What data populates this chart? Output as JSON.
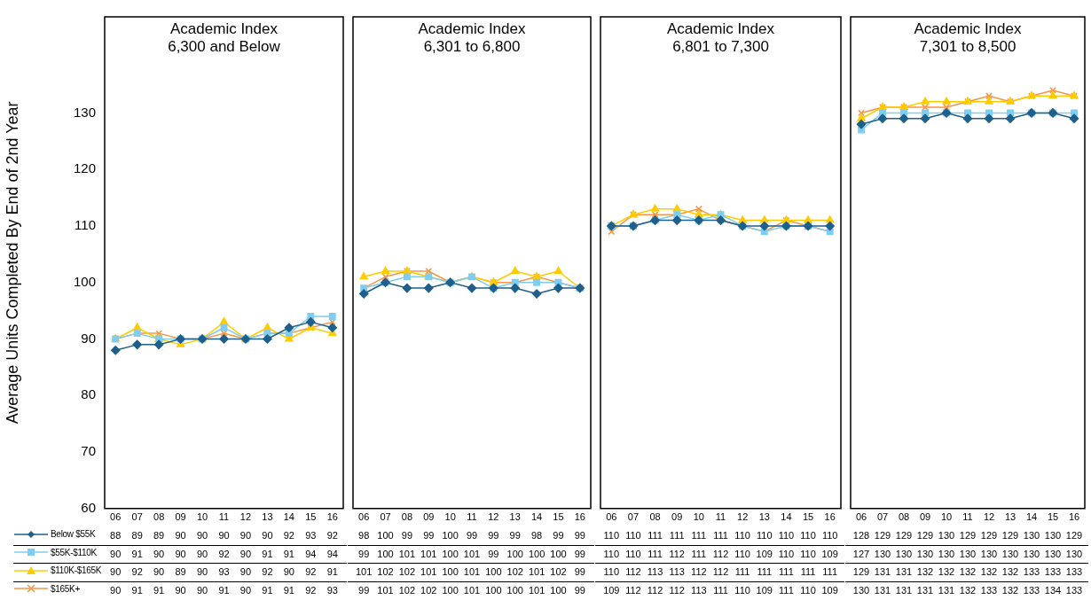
{
  "chart_data": [
    {
      "type": "line",
      "title": "Academic Index\n6,300 and Below",
      "ylabel": "Average Units Completed By End of 2nd Year",
      "categories": [
        "06",
        "07",
        "08",
        "09",
        "10",
        "11",
        "12",
        "13",
        "14",
        "15",
        "16"
      ],
      "ylim": [
        60,
        147
      ],
      "yticks": [
        60,
        70,
        80,
        90,
        100,
        110,
        120,
        130
      ],
      "legend": "bottom left",
      "data_labels": true,
      "series": [
        {
          "name": "Below $55K",
          "color": "#1f5f8b",
          "marker": "diamond",
          "values": [
            88,
            89,
            89,
            90,
            90,
            90,
            90,
            90,
            92,
            93,
            92
          ]
        },
        {
          "name": "$55K-$110K",
          "color": "#7fcdf0",
          "marker": "square",
          "values": [
            90,
            91,
            90,
            90,
            90,
            92,
            90,
            91,
            91,
            94,
            94
          ]
        },
        {
          "name": "$110K-$165K",
          "color": "#ffcc00",
          "marker": "triangle",
          "values": [
            90,
            92,
            90,
            89,
            90,
            93,
            90,
            92,
            90,
            92,
            91
          ]
        },
        {
          "name": "$165K+",
          "color": "#f79646",
          "marker": "cross",
          "values": [
            90,
            91,
            91,
            90,
            90,
            91,
            90,
            91,
            91,
            92,
            93
          ]
        }
      ]
    },
    {
      "type": "line",
      "title": "Academic Index\n6,301 to 6,800",
      "categories": [
        "06",
        "07",
        "08",
        "09",
        "10",
        "11",
        "12",
        "13",
        "14",
        "15",
        "16"
      ],
      "ylim": [
        60,
        147
      ],
      "tick_labels": "x",
      "data_labels": true,
      "series": [
        {
          "color": "#1f5f8b",
          "marker": "diamond",
          "values": [
            98,
            100,
            99,
            99,
            100,
            99,
            99,
            99,
            98,
            99,
            99
          ]
        },
        {
          "color": "#7fcdf0",
          "marker": "square",
          "values": [
            99,
            100,
            101,
            101,
            100,
            101,
            99,
            100,
            100,
            100,
            99
          ]
        },
        {
          "color": "#ffcc00",
          "marker": "triangle",
          "values": [
            101,
            102,
            102,
            101,
            100,
            101,
            100,
            102,
            101,
            102,
            99
          ]
        },
        {
          "color": "#f79646",
          "marker": "cross",
          "values": [
            99,
            101,
            102,
            102,
            100,
            101,
            100,
            100,
            101,
            100,
            99
          ]
        }
      ]
    },
    {
      "type": "line",
      "title": "Academic Index\n6,801 to 7,300",
      "categories": [
        "06",
        "07",
        "08",
        "09",
        "10",
        "11",
        "12",
        "13",
        "14",
        "15",
        "16"
      ],
      "ylim": [
        60,
        147
      ],
      "tick_labels": "x",
      "data_labels": true,
      "series": [
        {
          "color": "#1f5f8b",
          "marker": "diamond",
          "values": [
            110,
            110,
            111,
            111,
            111,
            111,
            110,
            110,
            110,
            110,
            110
          ]
        },
        {
          "color": "#7fcdf0",
          "marker": "square",
          "values": [
            110,
            110,
            111,
            112,
            111,
            112,
            110,
            109,
            110,
            110,
            109
          ]
        },
        {
          "color": "#ffcc00",
          "marker": "triangle",
          "values": [
            110,
            112,
            113,
            113,
            112,
            112,
            111,
            111,
            111,
            111,
            111
          ]
        },
        {
          "color": "#f79646",
          "marker": "cross",
          "values": [
            109,
            112,
            112,
            112,
            113,
            111,
            110,
            109,
            111,
            110,
            109
          ]
        }
      ]
    },
    {
      "type": "line",
      "title": "Academic Index\n7,301 to 8,500",
      "categories": [
        "06",
        "07",
        "08",
        "09",
        "10",
        "11",
        "12",
        "13",
        "14",
        "15",
        "16"
      ],
      "ylim": [
        60,
        147
      ],
      "tick_labels": "x",
      "data_labels": true,
      "series": [
        {
          "color": "#1f5f8b",
          "marker": "diamond",
          "values": [
            128,
            129,
            129,
            129,
            130,
            129,
            129,
            129,
            130,
            130,
            129
          ]
        },
        {
          "color": "#7fcdf0",
          "marker": "square",
          "values": [
            127,
            130,
            130,
            130,
            130,
            130,
            130,
            130,
            130,
            130,
            130
          ]
        },
        {
          "color": "#ffcc00",
          "marker": "triangle",
          "values": [
            129,
            131,
            131,
            132,
            132,
            132,
            132,
            132,
            133,
            133,
            133
          ]
        },
        {
          "color": "#f79646",
          "marker": "cross",
          "values": [
            130,
            131,
            131,
            131,
            131,
            132,
            133,
            132,
            133,
            134,
            133
          ]
        }
      ]
    }
  ]
}
